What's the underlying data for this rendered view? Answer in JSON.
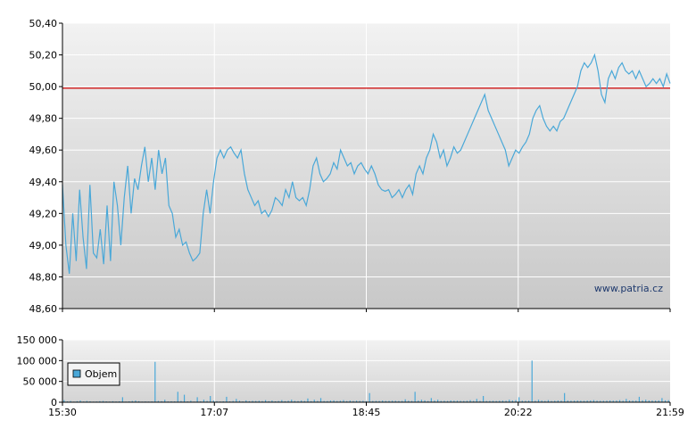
{
  "chart_data": [
    {
      "type": "line",
      "title": "",
      "xlabel": "",
      "ylabel": "",
      "ylim": [
        48.6,
        50.4
      ],
      "y_ticks": [
        "48,60",
        "48,80",
        "49,00",
        "49,20",
        "49,40",
        "49,60",
        "49,80",
        "50,00",
        "50,20",
        "50,40"
      ],
      "y_tick_values": [
        48.6,
        48.8,
        49.0,
        49.2,
        49.4,
        49.6,
        49.8,
        50.0,
        50.2,
        50.4
      ],
      "reference_line": 49.99,
      "reference_color": "#cc0000",
      "line_color": "#4aa8d8",
      "grid": true,
      "watermark": "www.patria.cz",
      "series": [
        {
          "values": [
            49.38,
            49.0,
            48.82,
            49.2,
            48.9,
            49.35,
            49.05,
            48.85,
            49.38,
            48.95,
            48.92,
            49.1,
            48.88,
            49.25,
            48.9,
            49.4,
            49.25,
            49.0,
            49.3,
            49.5,
            49.2,
            49.42,
            49.35,
            49.5,
            49.62,
            49.4,
            49.55,
            49.35,
            49.6,
            49.45,
            49.55,
            49.25,
            49.2,
            49.05,
            49.1,
            49.0,
            49.02,
            48.95,
            48.9,
            48.92,
            48.95,
            49.2,
            49.35,
            49.2,
            49.4,
            49.55,
            49.6,
            49.55,
            49.6,
            49.62,
            49.58,
            49.55,
            49.6,
            49.45,
            49.35,
            49.3,
            49.25,
            49.28,
            49.2,
            49.22,
            49.18,
            49.22,
            49.3,
            49.28,
            49.25,
            49.35,
            49.3,
            49.4,
            49.3,
            49.28,
            49.3,
            49.25,
            49.35,
            49.5,
            49.55,
            49.45,
            49.4,
            49.42,
            49.45,
            49.52,
            49.48,
            49.6,
            49.55,
            49.5,
            49.52,
            49.45,
            49.5,
            49.52,
            49.48,
            49.45,
            49.5,
            49.45,
            49.38,
            49.35,
            49.34,
            49.35,
            49.3,
            49.32,
            49.35,
            49.3,
            49.35,
            49.38,
            49.32,
            49.45,
            49.5,
            49.45,
            49.55,
            49.6,
            49.7,
            49.65,
            49.55,
            49.6,
            49.5,
            49.55,
            49.62,
            49.58,
            49.6,
            49.65,
            49.7,
            49.75,
            49.8,
            49.85,
            49.9,
            49.95,
            49.85,
            49.8,
            49.75,
            49.7,
            49.65,
            49.6,
            49.5,
            49.55,
            49.6,
            49.58,
            49.62,
            49.65,
            49.7,
            49.8,
            49.85,
            49.88,
            49.8,
            49.75,
            49.72,
            49.75,
            49.72,
            49.78,
            49.8,
            49.85,
            49.9,
            49.95,
            50.0,
            50.1,
            50.15,
            50.12,
            50.15,
            50.2,
            50.1,
            49.95,
            49.9,
            50.05,
            50.1,
            50.05,
            50.12,
            50.15,
            50.1,
            50.08,
            50.1,
            50.05,
            50.1,
            50.05,
            50.0,
            50.02,
            50.05,
            50.02,
            50.05,
            50.0,
            50.08,
            50.02
          ]
        }
      ]
    },
    {
      "type": "bar",
      "title": "",
      "xlabel": "",
      "ylabel": "",
      "ylim": [
        0,
        150000
      ],
      "y_ticks": [
        "0",
        "50 000",
        "100 000",
        "150 000"
      ],
      "y_tick_values": [
        0,
        50000,
        100000,
        150000
      ],
      "x_ticks": [
        "15:30",
        "17:07",
        "18:45",
        "20:22",
        "21:59"
      ],
      "legend": "Objem",
      "legend_color": "#4aa8d8",
      "bar_color": "#4aa8d8",
      "grid": true,
      "series": [
        {
          "name": "Objem",
          "values": [
            5000,
            2000,
            3000,
            1500,
            2500,
            4000,
            1800,
            3000,
            2200,
            1500,
            1800,
            2500,
            3000,
            2000,
            1600,
            2400,
            1800,
            2200,
            12000,
            1500,
            2000,
            3000,
            4000,
            2500,
            1500,
            1800,
            1600,
            2000,
            97000,
            3000,
            2500,
            6000,
            1800,
            2200,
            2000,
            25000,
            3000,
            18000,
            2000,
            3500,
            1500,
            12000,
            2000,
            6000,
            3000,
            15000,
            4000,
            2500,
            1800,
            2200,
            13000,
            2000,
            3000,
            8000,
            3500,
            2000,
            4500,
            2500,
            3200,
            3000,
            3400,
            2800,
            5000,
            2600,
            4000,
            2200,
            3000,
            5000,
            2500,
            3500,
            6000,
            3200,
            2800,
            4000,
            3000,
            9000,
            2500,
            6000,
            3000,
            10000,
            3000,
            2800,
            4000,
            4500,
            3000,
            3500,
            5000,
            2800,
            4000,
            3000,
            3600,
            3200,
            3400,
            2900,
            22000,
            3000,
            3200,
            3000,
            4000,
            3100,
            3300,
            3600,
            3400,
            3000,
            3200,
            7000,
            3500,
            3200,
            25000,
            4000,
            6000,
            4500,
            3000,
            10000,
            4000,
            6000,
            3200,
            3500,
            3000,
            4200,
            3800,
            3600,
            3300,
            3100,
            3400,
            5000,
            3200,
            8000,
            3300,
            15000,
            3000,
            3200,
            3400,
            3000,
            3500,
            3800,
            3500,
            6000,
            4000,
            5000,
            12000,
            3600,
            3400,
            3800,
            100000,
            3500,
            6000,
            4000,
            3200,
            5000,
            3000,
            3500,
            4200,
            3800,
            22000,
            4000,
            3600,
            3800,
            4000,
            3600,
            3400,
            3900,
            4100,
            5000,
            3600,
            3400,
            3500,
            3700,
            4200,
            3800,
            4000,
            5000,
            3600,
            8000,
            4200,
            3800,
            4000,
            13000,
            4500,
            6000,
            4200,
            4000,
            3800,
            4400,
            10000,
            4500,
            5000
          ]
        }
      ]
    }
  ]
}
